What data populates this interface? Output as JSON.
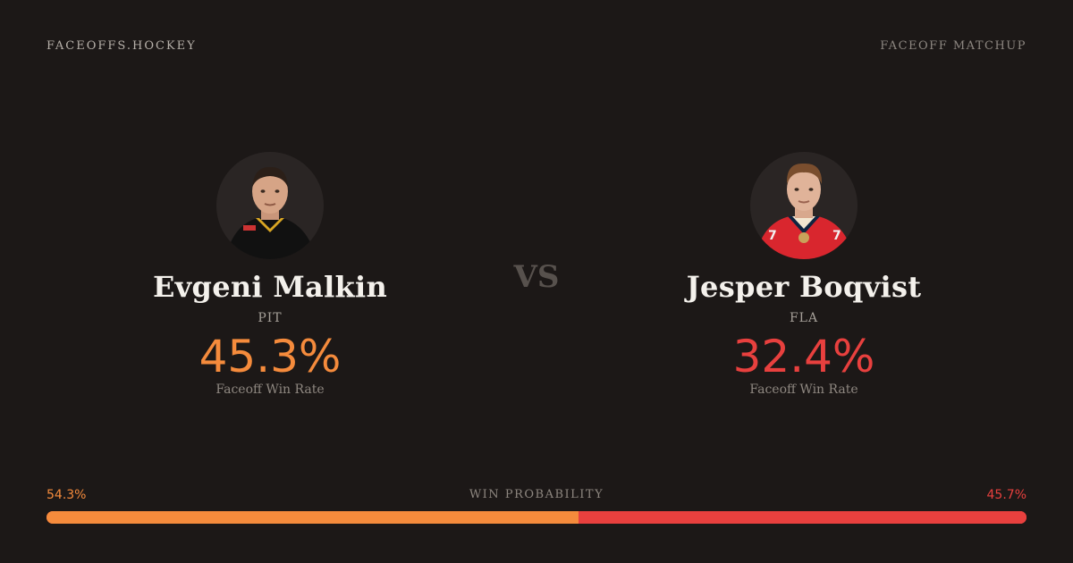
{
  "header": {
    "brand": "FACEOFFS.HOCKEY",
    "page_label": "FACEOFF MATCHUP"
  },
  "players": [
    {
      "name": "Evgeni Malkin",
      "team": "PIT",
      "rate": "45.3%",
      "rate_label": "Faceoff Win Rate",
      "color": "#f58b3c"
    },
    {
      "name": "Jesper Boqvist",
      "team": "FLA",
      "rate": "32.4%",
      "rate_label": "Faceoff Win Rate",
      "color": "#e8403e"
    }
  ],
  "vs_label": "VS",
  "probability": {
    "title": "WIN PROBABILITY",
    "left_label": "54.3%",
    "right_label": "45.7%",
    "left_value": 54.3,
    "right_value": 45.7,
    "left_color": "#f58b3c",
    "right_color": "#e8403e"
  }
}
